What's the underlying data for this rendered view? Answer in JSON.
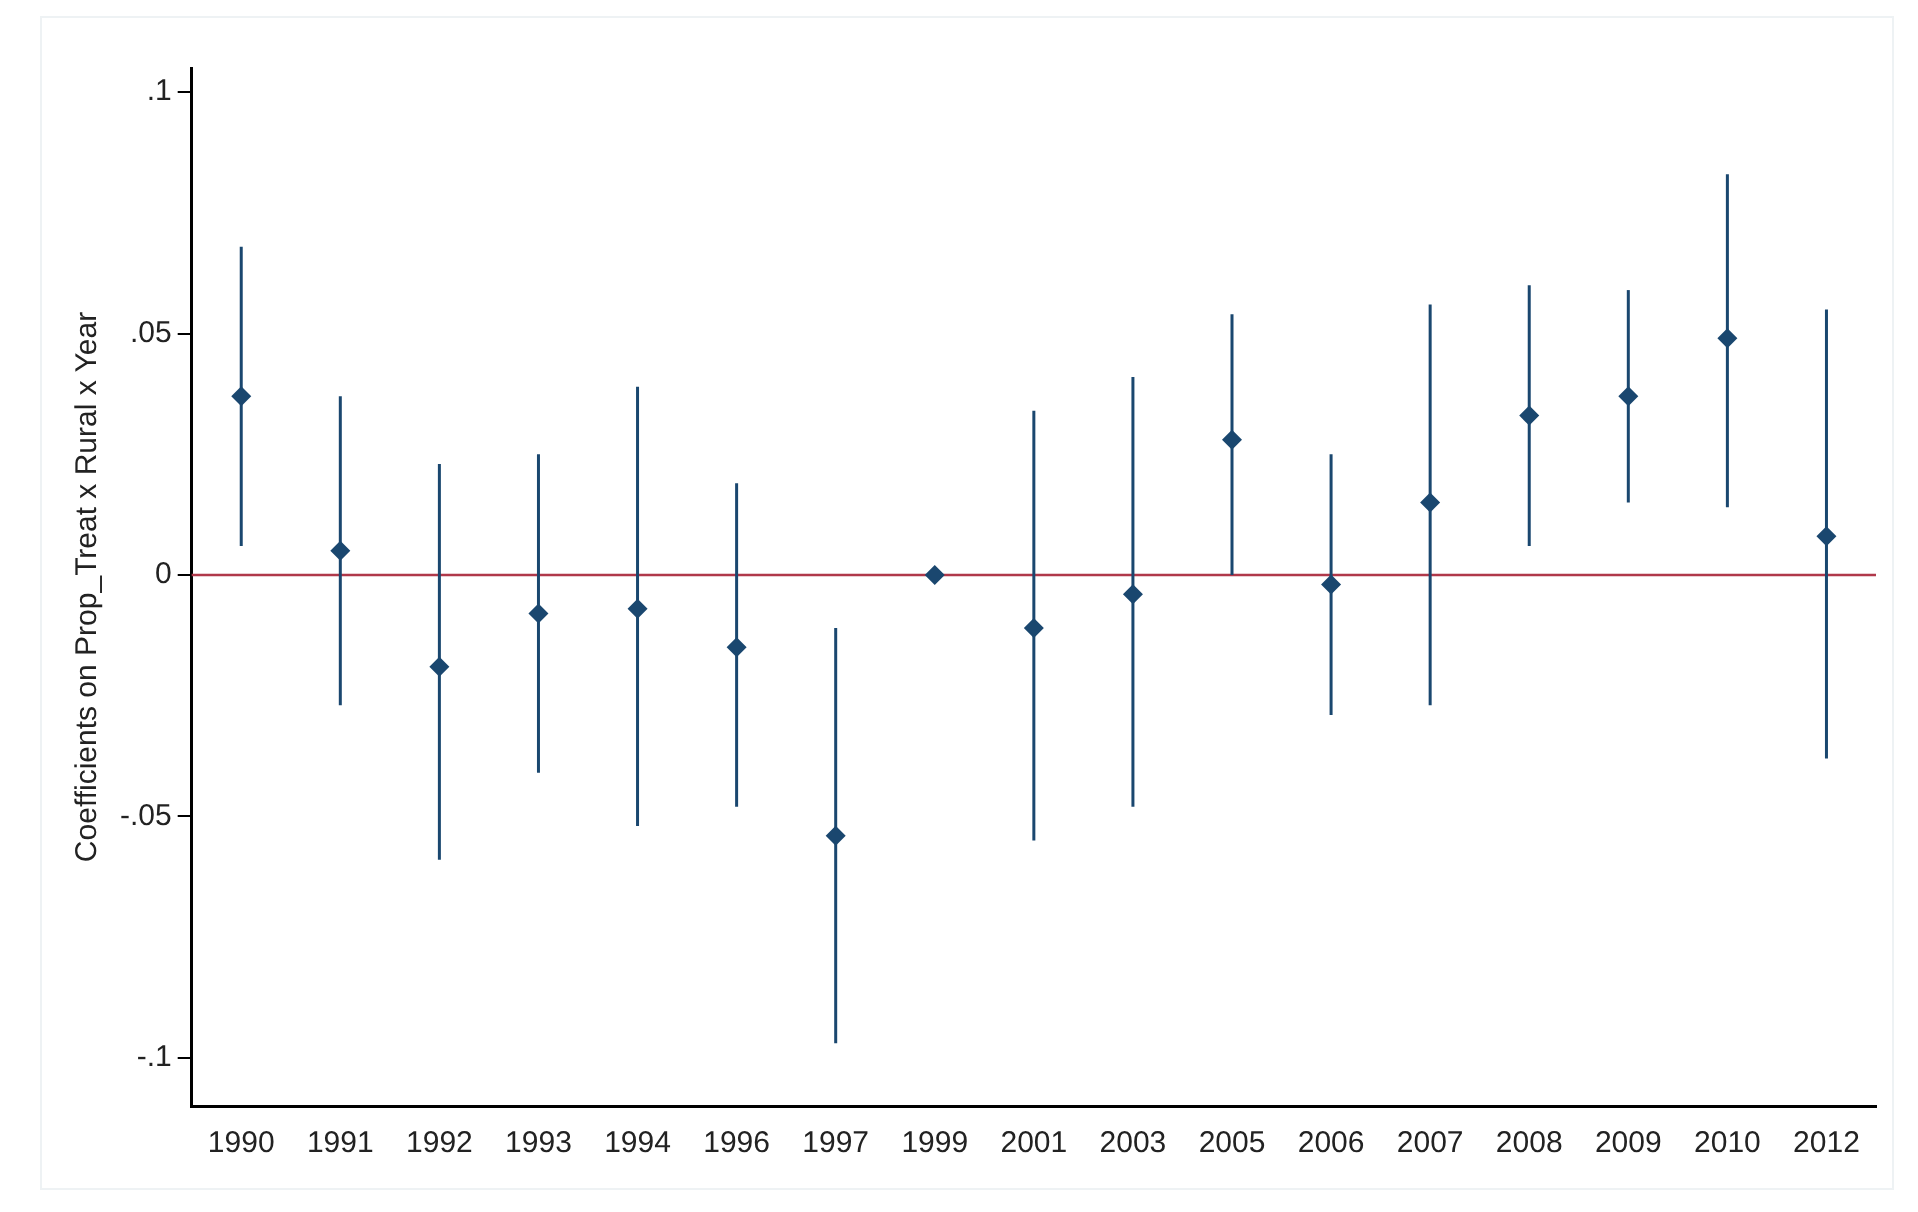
{
  "chart_data": {
    "type": "scatter",
    "ylabel": "Coefficients on Prop_Treat x Rural x Year",
    "categories": [
      "1990",
      "1991",
      "1992",
      "1993",
      "1994",
      "1996",
      "1997",
      "1999",
      "2001",
      "2003",
      "2005",
      "2006",
      "2007",
      "2008",
      "2009",
      "2010",
      "2012"
    ],
    "series": [
      {
        "color": "#1a476f",
        "values": [
          0.037,
          0.005,
          -0.019,
          -0.008,
          -0.007,
          -0.015,
          -0.054,
          0,
          -0.011,
          -0.004,
          0.028,
          -0.002,
          0.015,
          0.033,
          0.037,
          0.049,
          0.008
        ],
        "errors": [
          [
            0.006,
            0.068
          ],
          [
            -0.027,
            0.037
          ],
          [
            -0.059,
            0.023
          ],
          [
            -0.041,
            0.025
          ],
          [
            -0.052,
            0.039
          ],
          [
            -0.048,
            0.019
          ],
          [
            -0.097,
            -0.011
          ],
          null,
          [
            -0.055,
            0.034
          ],
          [
            -0.048,
            0.041
          ],
          [
            0,
            0.054
          ],
          [
            -0.029,
            0.025
          ],
          [
            -0.027,
            0.056
          ],
          [
            0.006,
            0.06
          ],
          [
            0.015,
            0.059
          ],
          [
            0.014,
            0.083
          ],
          [
            -0.038,
            0.055
          ]
        ]
      }
    ],
    "ylim": [
      -0.11,
      0.105
    ],
    "yticks": [
      {
        "value": -0.1,
        "label": "-.1"
      },
      {
        "value": -0.05,
        "label": "-.05"
      },
      {
        "value": 0,
        "label": "0"
      },
      {
        "value": 0.05,
        "label": ".05"
      },
      {
        "value": 0.1,
        "label": ".1"
      }
    ],
    "ref_lines": [
      {
        "axis": "y",
        "value": 0,
        "color": "#b0384a"
      }
    ],
    "marker": "diamond",
    "grid": false,
    "legend": false
  }
}
